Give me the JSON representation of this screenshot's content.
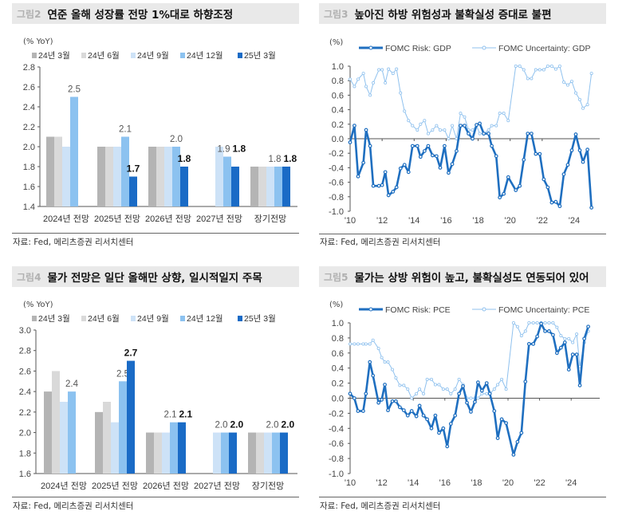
{
  "panels": [
    {
      "fig": "그림2",
      "title": "연준 올해 성장률 전망 1%대로 하향조정",
      "source": "자료: Fed, 메리츠증권 리서치센터"
    },
    {
      "fig": "그림3",
      "title": "높아진 하방 위험성과 불확실성 증대로 불편",
      "source": "자료: Fed, 메리츠증권 리서치센터"
    },
    {
      "fig": "그림4",
      "title": "물가 전망은 일단 올해만 상향, 일시적일지 주목",
      "source": "자료: Fed, 메리츠증권 리서치센터"
    },
    {
      "fig": "그림5",
      "title": "물가는 상방 위험이 높고, 불확실성도 연동되어 있어",
      "source": "자료: Fed, 메리츠증권 리서치센터"
    }
  ],
  "chart_data": [
    {
      "type": "bar",
      "ylabel": "(% YoY)",
      "ylim": [
        1.4,
        2.8
      ],
      "yticks": [
        "1.4",
        "1.6",
        "1.8",
        "2.0",
        "2.2",
        "2.4",
        "2.6",
        "2.8"
      ],
      "categories": [
        "2024년 전망",
        "2025년 전망",
        "2026년 전망",
        "2027년 전망",
        "장기전망"
      ],
      "series": [
        {
          "name": "24년 3월",
          "color": "#b4b4b4",
          "values": [
            2.1,
            2.0,
            2.0,
            null,
            1.8
          ]
        },
        {
          "name": "24년 6월",
          "color": "#d9d9d9",
          "values": [
            2.1,
            2.0,
            2.0,
            null,
            1.8
          ]
        },
        {
          "name": "24년 9월",
          "color": "#cde2f7",
          "values": [
            2.0,
            2.0,
            2.0,
            2.0,
            1.8
          ]
        },
        {
          "name": "24년 12월",
          "color": "#8cc2f0",
          "values": [
            2.5,
            2.1,
            2.0,
            1.9,
            1.8
          ]
        },
        {
          "name": "25년 3월",
          "color": "#1a6bc6",
          "values": [
            null,
            1.7,
            1.8,
            1.8,
            1.8
          ]
        }
      ],
      "labeled_series": [
        3,
        4
      ],
      "legend": "top",
      "grid": false
    },
    {
      "type": "line",
      "ylabel": "(%)",
      "ylim": [
        -1.0,
        1.0
      ],
      "yticks": [
        "-1.0",
        "-0.8",
        "-0.6",
        "-0.4",
        "-0.2",
        "0.0",
        "0.2",
        "0.4",
        "0.6",
        "0.8",
        "1.0"
      ],
      "xticks": [
        "'10",
        "'12",
        "'14",
        "'16",
        "'18",
        "'20",
        "'22",
        "'24"
      ],
      "x": [
        2010.0,
        2010.27,
        2010.5,
        2010.83,
        2011.0,
        2011.25,
        2011.45,
        2011.8,
        2012.0,
        2012.2,
        2012.4,
        2012.68,
        2012.9,
        2013.15,
        2013.4,
        2013.65,
        2013.9,
        2014.2,
        2014.4,
        2014.65,
        2014.88,
        2015.15,
        2015.4,
        2015.63,
        2015.9,
        2016.15,
        2016.38,
        2016.65,
        2016.9,
        2017.15,
        2017.4,
        2017.65,
        2017.9,
        2018.1,
        2018.35,
        2018.65,
        2018.85,
        2019.13,
        2019.35,
        2019.6,
        2019.88,
        2020.35,
        2020.6,
        2020.85,
        2021.1,
        2021.33,
        2021.6,
        2021.85,
        2022.1,
        2022.35,
        2022.6,
        2022.85,
        2023.1,
        2023.35,
        2023.6,
        2023.85,
        2024.1,
        2024.35,
        2024.55,
        2024.83,
        2025.08
      ],
      "series": [
        {
          "name": "FOMC Risk: GDP",
          "color": "#1f6fc0",
          "values": [
            -0.05,
            0.18,
            -0.52,
            -0.33,
            0.12,
            -0.1,
            -0.65,
            -0.65,
            -0.64,
            -0.46,
            -0.78,
            -0.73,
            -0.67,
            -0.41,
            -0.36,
            -0.46,
            -0.1,
            -0.1,
            -0.25,
            -0.17,
            -0.1,
            -0.23,
            -0.24,
            -0.4,
            -0.1,
            -0.47,
            -0.35,
            -0.17,
            0.18,
            0.18,
            0.07,
            0.0,
            0.19,
            0.21,
            0.07,
            0.07,
            -0.1,
            -0.24,
            -0.81,
            -0.76,
            -0.53,
            -0.71,
            -0.65,
            -0.29,
            0.07,
            0.07,
            -0.21,
            -0.21,
            -0.56,
            -0.67,
            -0.88,
            -0.87,
            -0.93,
            -0.49,
            -0.36,
            -0.16,
            0.06,
            -0.16,
            -0.32,
            -0.15,
            -0.95
          ]
        },
        {
          "name": "FOMC Uncertainty: GDP",
          "color": "#8fc1ee",
          "values": [
            0.82,
            0.72,
            0.82,
            0.9,
            0.72,
            0.6,
            0.77,
            0.95,
            0.95,
            0.77,
            0.96,
            0.9,
            0.96,
            0.63,
            0.38,
            0.25,
            0.18,
            0.12,
            0.2,
            0.25,
            0.07,
            0.12,
            0.18,
            0.12,
            0.12,
            0.0,
            0.18,
            0.0,
            0.35,
            0.3,
            0.12,
            0.12,
            0.18,
            0.07,
            0.07,
            0.12,
            0.18,
            0.18,
            0.35,
            0.35,
            0.25,
            1.0,
            1.0,
            0.95,
            0.83,
            0.83,
            0.95,
            0.95,
            0.95,
            1.0,
            1.0,
            0.96,
            1.0,
            0.78,
            0.74,
            0.79,
            0.63,
            0.54,
            0.42,
            0.47,
            0.9
          ]
        }
      ],
      "legend": "top",
      "grid": false
    },
    {
      "type": "bar",
      "ylabel": "(% YoY)",
      "ylim": [
        1.6,
        3.0
      ],
      "yticks": [
        "1.6",
        "1.8",
        "2.0",
        "2.2",
        "2.4",
        "2.6",
        "2.8",
        "3.0"
      ],
      "categories": [
        "2024년 전망",
        "2025년 전망",
        "2026년 전망",
        "2027년 전망",
        "장기전망"
      ],
      "series": [
        {
          "name": "24년 3월",
          "color": "#b4b4b4",
          "values": [
            2.4,
            2.2,
            2.0,
            null,
            2.0
          ]
        },
        {
          "name": "24년 6월",
          "color": "#d9d9d9",
          "values": [
            2.6,
            2.3,
            2.0,
            null,
            2.0
          ]
        },
        {
          "name": "24년 9월",
          "color": "#cde2f7",
          "values": [
            2.3,
            2.1,
            2.0,
            2.0,
            2.0
          ]
        },
        {
          "name": "24년 12월",
          "color": "#8cc2f0",
          "values": [
            2.4,
            2.5,
            2.1,
            2.0,
            2.0
          ]
        },
        {
          "name": "25년 3월",
          "color": "#1a6bc6",
          "values": [
            null,
            2.7,
            2.1,
            2.0,
            2.0
          ]
        }
      ],
      "labeled_series": [
        3,
        4
      ],
      "legend": "top",
      "grid": false
    },
    {
      "type": "line",
      "ylabel": "(%)",
      "ylim": [
        -1.0,
        1.0
      ],
      "yticks": [
        "-1.0",
        "-0.8",
        "-0.6",
        "-0.4",
        "-0.2",
        "0.0",
        "0.2",
        "0.4",
        "0.6",
        "0.8",
        "1.0"
      ],
      "xticks": [
        "'10",
        "'12",
        "'14",
        "'16",
        "'18",
        "'20",
        "'22",
        "'24"
      ],
      "x": [
        2010.0,
        2010.27,
        2010.5,
        2010.83,
        2011.0,
        2011.25,
        2011.45,
        2011.8,
        2012.0,
        2012.2,
        2012.4,
        2012.68,
        2012.9,
        2013.15,
        2013.4,
        2013.65,
        2013.9,
        2014.2,
        2014.4,
        2014.65,
        2014.88,
        2015.15,
        2015.4,
        2015.63,
        2015.9,
        2016.15,
        2016.38,
        2016.65,
        2016.9,
        2017.15,
        2017.4,
        2017.65,
        2017.9,
        2018.1,
        2018.35,
        2018.65,
        2018.85,
        2019.13,
        2019.35,
        2019.6,
        2019.88,
        2020.35,
        2020.6,
        2020.85,
        2021.1,
        2021.33,
        2021.6,
        2021.85,
        2022.1,
        2022.35,
        2022.6,
        2022.85,
        2023.1,
        2023.35,
        2023.6,
        2023.85,
        2024.1,
        2024.35,
        2024.55,
        2024.83,
        2025.08
      ],
      "series": [
        {
          "name": "FOMC Risk: PCE",
          "color": "#1f6fc0",
          "values": [
            0.06,
            0.0,
            -0.17,
            -0.17,
            0.06,
            0.48,
            0.3,
            -0.06,
            -0.02,
            0.18,
            -0.16,
            -0.04,
            -0.04,
            -0.12,
            -0.16,
            -0.23,
            -0.17,
            -0.24,
            -0.1,
            -0.23,
            -0.28,
            -0.4,
            -0.23,
            -0.46,
            -0.4,
            -0.64,
            -0.34,
            -0.23,
            0.06,
            0.16,
            -0.06,
            -0.18,
            -0.05,
            0.21,
            0.1,
            0.2,
            0.06,
            -0.17,
            -0.53,
            -0.28,
            -0.33,
            -0.75,
            -0.58,
            -0.46,
            0.22,
            0.72,
            0.72,
            0.82,
            0.99,
            0.89,
            0.89,
            0.84,
            0.6,
            0.67,
            0.74,
            0.38,
            0.58,
            0.58,
            0.17,
            0.79,
            0.95
          ]
        },
        {
          "name": "FOMC Uncertainty: PCE",
          "color": "#8fc1ee",
          "values": [
            0.72,
            0.72,
            0.72,
            0.72,
            0.72,
            0.72,
            0.77,
            0.66,
            0.54,
            0.48,
            0.48,
            0.38,
            0.27,
            0.17,
            0.17,
            0.12,
            0.0,
            0.06,
            0.12,
            0.06,
            0.25,
            0.25,
            0.18,
            0.18,
            0.12,
            0.12,
            0.06,
            0.12,
            0.25,
            0.18,
            0.0,
            0.0,
            0.0,
            0.0,
            0.06,
            0.06,
            0.06,
            0.12,
            0.18,
            0.25,
            0.12,
            1.0,
            0.95,
            0.83,
            0.89,
            1.0,
            1.0,
            1.0,
            1.0,
            1.0,
            1.0,
            1.0,
            0.94,
            0.83,
            0.79,
            0.79,
            0.74,
            0.85,
            0.42,
            0.74,
            0.89
          ]
        }
      ],
      "legend": "top",
      "grid": false
    }
  ]
}
